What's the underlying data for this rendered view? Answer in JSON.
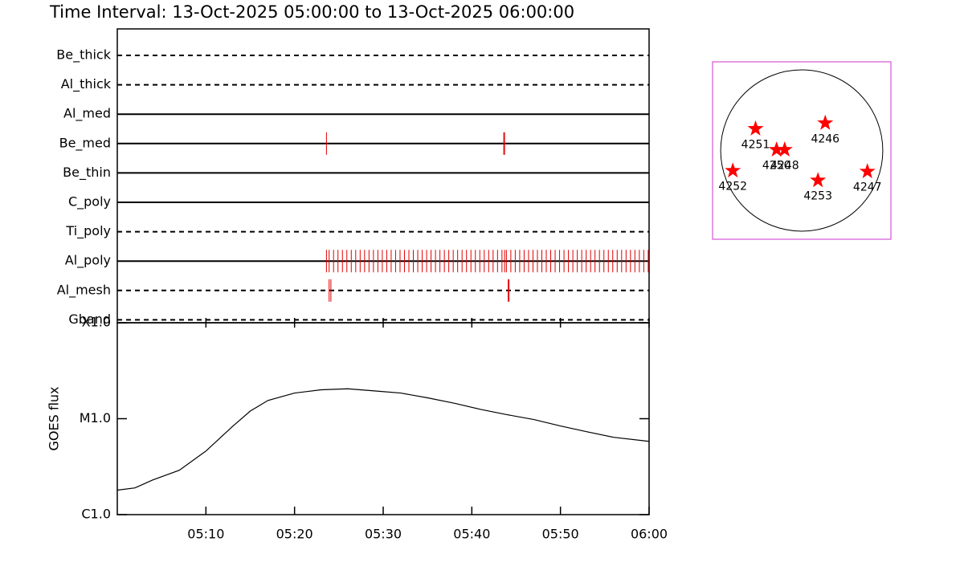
{
  "title": "Time Interval: 13-Oct-2025 05:00:00 to 13-Oct-2025 06:00:00",
  "chart_data": [
    {
      "type": "timeline",
      "xlim": [
        300,
        360
      ],
      "rows": [
        {
          "name": "Be_thick",
          "style": "dashed",
          "events": []
        },
        {
          "name": "Al_thick",
          "style": "dashed",
          "events": []
        },
        {
          "name": "Al_med",
          "style": "solid",
          "events": []
        },
        {
          "name": "Be_med",
          "style": "solid",
          "events": [
            323.6,
            343.6,
            343.7
          ]
        },
        {
          "name": "Be_thin",
          "style": "solid",
          "events": []
        },
        {
          "name": "C_poly",
          "style": "solid",
          "events": []
        },
        {
          "name": "Ti_poly",
          "style": "dashed",
          "events": []
        },
        {
          "name": "Al_poly",
          "style": "solid",
          "events": [
            323.6,
            323.9,
            324.4,
            324.9,
            325.4,
            325.9,
            326.4,
            326.9,
            327.4,
            327.9,
            328.4,
            328.9,
            329.4,
            329.9,
            330.4,
            330.9,
            331.4,
            331.9,
            332.4,
            332.9,
            333.4,
            333.9,
            334.4,
            334.9,
            335.4,
            335.9,
            336.4,
            336.9,
            337.4,
            337.9,
            338.4,
            338.9,
            339.4,
            339.9,
            340.4,
            340.9,
            341.4,
            341.9,
            342.4,
            342.9,
            343.4,
            343.7,
            343.9,
            344.4,
            344.9,
            345.4,
            345.9,
            346.4,
            346.9,
            347.4,
            347.9,
            348.4,
            348.9,
            349.4,
            349.9,
            350.4,
            350.9,
            351.4,
            351.9,
            352.4,
            352.9,
            353.4,
            353.9,
            354.4,
            354.9,
            355.4,
            355.9,
            356.4,
            356.9,
            357.4,
            357.9,
            358.4,
            358.9,
            359.4,
            359.9
          ]
        },
        {
          "name": "Al_mesh",
          "style": "dashed",
          "events": [
            323.9,
            324.1,
            344.1,
            344.2
          ]
        },
        {
          "name": "Gband",
          "style": "dashed",
          "events": []
        }
      ],
      "event_color": "#e00000"
    },
    {
      "type": "line",
      "ylabel": "GOES flux",
      "log_y": true,
      "color": "#000000",
      "xlim": [
        300,
        360
      ],
      "xticks": [
        {
          "value": 310,
          "label": "05:10"
        },
        {
          "value": 320,
          "label": "05:20"
        },
        {
          "value": 330,
          "label": "05:30"
        },
        {
          "value": 340,
          "label": "05:40"
        },
        {
          "value": 350,
          "label": "05:50"
        },
        {
          "value": 360,
          "label": "06:00"
        }
      ],
      "ylim": [
        1e-06,
        0.0001
      ],
      "yticks": [
        {
          "value": 1e-06,
          "label": "C1.0"
        },
        {
          "value": 1e-05,
          "label": "M1.0"
        },
        {
          "value": 0.0001,
          "label": "X1.0"
        }
      ],
      "x": [
        300,
        302,
        304,
        307,
        310,
        313,
        315,
        317,
        320,
        323,
        326,
        329,
        332,
        335,
        338,
        341,
        344,
        347,
        350,
        353,
        356,
        360
      ],
      "values": [
        1.8e-06,
        1.9e-06,
        2.3e-06,
        2.9e-06,
        4.6e-06,
        8.3e-06,
        1.2e-05,
        1.55e-05,
        1.85e-05,
        2e-05,
        2.05e-05,
        1.95e-05,
        1.85e-05,
        1.65e-05,
        1.45e-05,
        1.25e-05,
        1.1e-05,
        9.8e-06,
        8.4e-06,
        7.3e-06,
        6.4e-06,
        5.8e-06
      ]
    },
    {
      "type": "scatter",
      "xlim": [
        -1.1,
        1.1
      ],
      "ylim": [
        -1.1,
        1.1
      ],
      "color": "#ff0000",
      "frame_color": "#cc33cc",
      "labels": [
        "4251",
        "4246",
        "4250",
        "4248",
        "4252",
        "4253",
        "4247"
      ],
      "x": [
        -0.57,
        0.29,
        -0.31,
        -0.21,
        -0.85,
        0.2,
        0.81
      ],
      "y": [
        0.27,
        0.34,
        0.01,
        0.01,
        -0.25,
        -0.37,
        -0.26
      ]
    }
  ]
}
